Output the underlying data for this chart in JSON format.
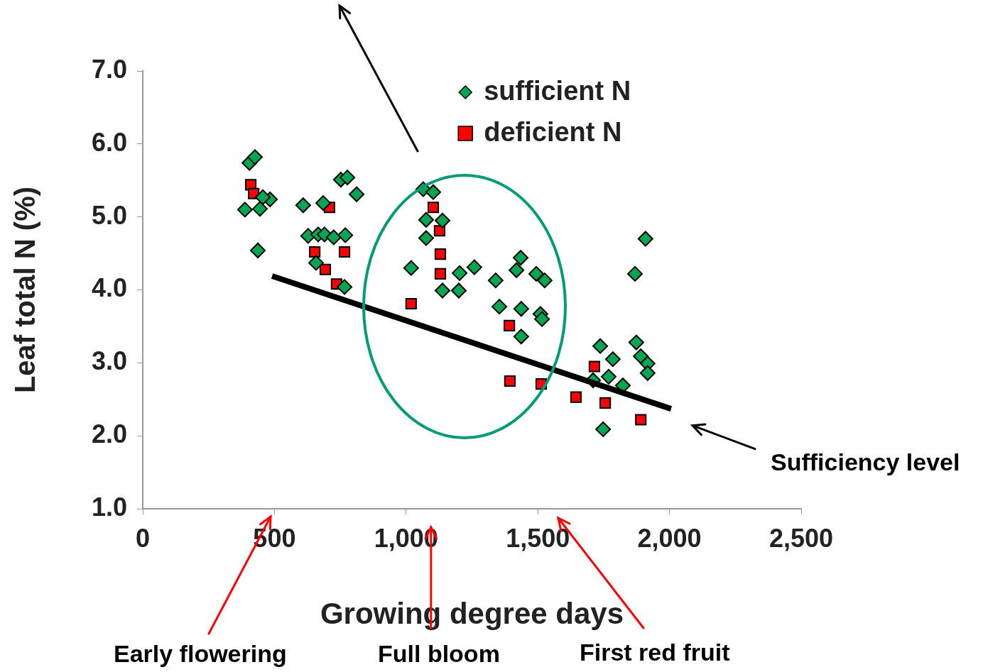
{
  "chart_data": {
    "type": "scatter",
    "xlabel": "Growing degree days",
    "ylabel": "Leaf total N (%)",
    "xlim": [
      0,
      2500
    ],
    "xticks": [
      0,
      500,
      {
        "value": 1000,
        "label": "1,000"
      },
      {
        "value": 1500,
        "label": "1,500"
      },
      {
        "value": 2000,
        "label": "2,000"
      },
      {
        "value": 2500,
        "label": "2,500"
      }
    ],
    "ylim": [
      1,
      7
    ],
    "yticks": [
      {
        "value": 1,
        "label": "1.0"
      },
      {
        "value": 2,
        "label": "2.0"
      },
      {
        "value": 3,
        "label": "3.0"
      },
      {
        "value": 4,
        "label": "4.0"
      },
      {
        "value": 5,
        "label": "5.0"
      },
      {
        "value": 6,
        "label": "6.0"
      },
      {
        "value": 7,
        "label": "7.0"
      }
    ],
    "grid": false,
    "legend": "top",
    "series": [
      {
        "name": "sufficient N",
        "color": "#00a651",
        "marker": "diamond",
        "x": [
          405,
          426,
          388,
          445,
          483,
          437,
          456,
          609,
          685,
          752,
          777,
          812,
          628,
          666,
          690,
          725,
          769,
          658,
          766,
          1065,
          1103,
          1076,
          1138,
          1076,
          1019,
          1203,
          1259,
          1138,
          1200,
          1340,
          1435,
          1419,
          1494,
          1526,
          1354,
          1437,
          1510,
          1516,
          1437,
          1909,
          1869,
          1737,
          1785,
          1769,
          1823,
          1874,
          1891,
          1917,
          1917,
          1748,
          1710
        ],
        "values": [
          5.74,
          5.82,
          5.1,
          5.11,
          5.24,
          4.54,
          5.27,
          5.16,
          5.19,
          5.51,
          5.54,
          5.31,
          4.74,
          4.76,
          4.76,
          4.72,
          4.75,
          4.37,
          4.04,
          5.38,
          5.34,
          4.96,
          4.95,
          4.71,
          4.3,
          4.23,
          4.31,
          3.99,
          3.99,
          4.13,
          4.44,
          4.27,
          4.22,
          4.13,
          3.77,
          3.74,
          3.67,
          3.6,
          3.36,
          4.7,
          4.22,
          3.23,
          3.05,
          2.81,
          2.69,
          3.28,
          3.09,
          2.99,
          2.86,
          2.09,
          2.76
        ]
      },
      {
        "name": "deficient N",
        "color": "#ff0000",
        "marker": "square",
        "x": [
          410,
          421,
          709,
          653,
          766,
          693,
          736,
          1103,
          1127,
          1130,
          1130,
          1019,
          1392,
          1394,
          1513,
          1645,
          1715,
          1756,
          1891
        ],
        "values": [
          5.44,
          5.32,
          5.13,
          4.52,
          4.52,
          4.28,
          4.08,
          5.13,
          4.81,
          4.49,
          4.22,
          3.81,
          3.51,
          2.75,
          2.71,
          2.53,
          2.95,
          2.45,
          2.22
        ]
      },
      {
        "type": "line",
        "color": "#000000",
        "marker": "none",
        "x": [
          491,
          2006
        ],
        "values": [
          4.19,
          2.37
        ]
      }
    ],
    "annotations": [
      "Sufficiency level",
      "Early flowering",
      "Full bloom",
      "First red fruit"
    ]
  }
}
